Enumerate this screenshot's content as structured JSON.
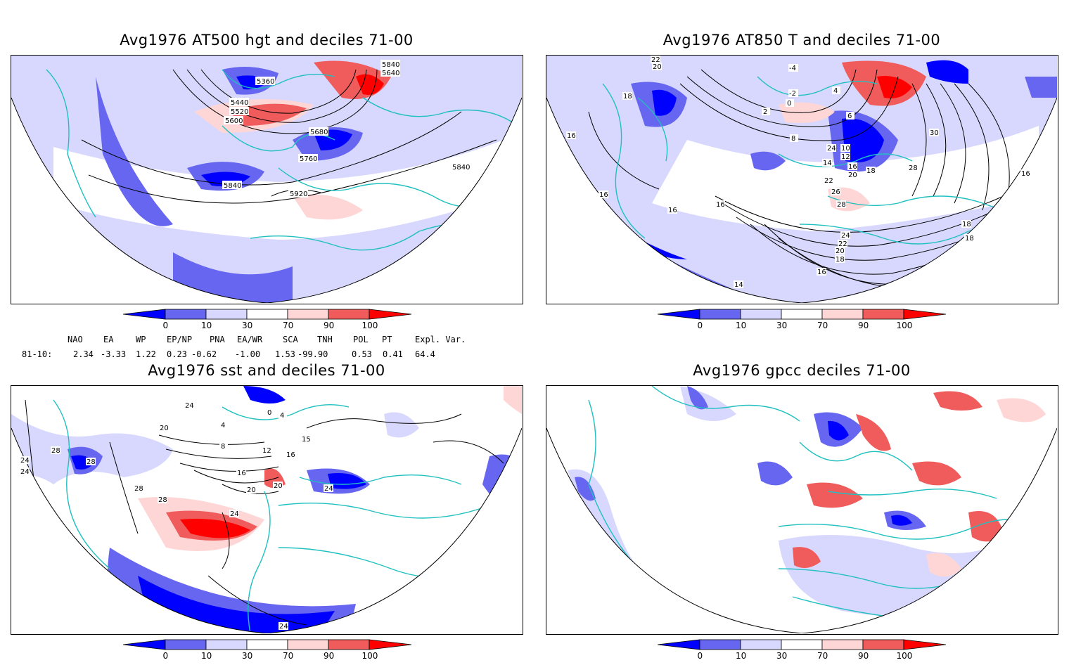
{
  "panels": [
    {
      "title": "Avg1976 AT500 hgt and deciles 71-00",
      "contour_labels": [
        "5360",
        "5440",
        "5520",
        "5600",
        "5680",
        "5760",
        "5840",
        "5920",
        "5840",
        "5640",
        "5840"
      ]
    },
    {
      "title": "Avg1976 AT850 T and deciles 71-00",
      "contour_labels": [
        "22",
        "20",
        "18",
        "16",
        "-4",
        "-2",
        "0",
        "2",
        "4",
        "8",
        "6",
        "10",
        "12",
        "14",
        "16",
        "18",
        "20",
        "22",
        "24",
        "26",
        "28",
        "30",
        "28",
        "18",
        "16",
        "16",
        "16",
        "16",
        "14",
        "24",
        "22",
        "20",
        "18",
        "16",
        "18"
      ]
    },
    {
      "title": "Avg1976 sst and deciles 71-00",
      "contour_labels": [
        "24",
        "28",
        "28",
        "20",
        "4",
        "8",
        "12",
        "16",
        "20",
        "24",
        "28",
        "24",
        "28",
        "24",
        "0",
        "4",
        "20",
        "16",
        "24",
        "15",
        "24"
      ]
    },
    {
      "title": "Avg1976 gpcc deciles 71-00",
      "contour_labels": []
    }
  ],
  "colorbar": {
    "tick_labels": [
      "0",
      "10",
      "30",
      "70",
      "90",
      "100"
    ],
    "colors": [
      "#0000ff",
      "#6666f0",
      "#d8d8ff",
      "#ffffff",
      "#ffd6d6",
      "#f05c5c",
      "#ff0000"
    ]
  },
  "indices": {
    "headers": [
      "NAO",
      "EA",
      "WP",
      "EP/NP",
      "PNA",
      "EA/WR",
      "SCA",
      "TNH",
      "POL",
      "PT",
      "Expl. Var."
    ],
    "row_label": "81-10:",
    "values": [
      "2.34",
      "-3.33",
      "1.22",
      "0.23",
      "-0.62",
      "-1.00",
      "1.53",
      "-99.90",
      "0.53",
      "0.41",
      "64.4"
    ]
  },
  "colors": {
    "coast": "#20c0c0",
    "frame": "#000000"
  }
}
